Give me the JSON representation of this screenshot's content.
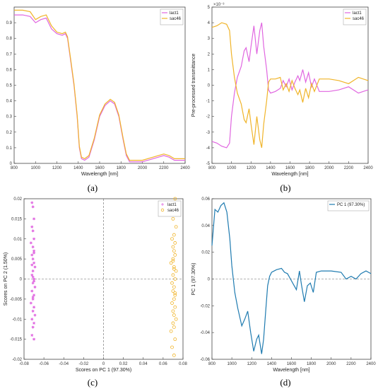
{
  "colors": {
    "pink": "#e066e0",
    "orange": "#f0b429",
    "blue": "#1f7bb0",
    "dash": "#666666"
  },
  "chart_data": [
    {
      "type": "line",
      "panel_label": "(a)",
      "xlabel": "Wavelength [nm]",
      "ylabel": "Transmittance",
      "xlim": [
        800,
        2400
      ],
      "ylim": [
        0,
        1
      ],
      "xticks": [
        800,
        1000,
        1200,
        1400,
        1600,
        1800,
        2000,
        2200,
        2400
      ],
      "yticks": [
        0,
        0.1,
        0.2,
        0.3,
        0.4,
        0.5,
        0.6,
        0.7,
        0.8,
        0.9
      ],
      "legend_pos": "top-right",
      "series": [
        {
          "name": "lact1",
          "color": "pink",
          "x": [
            800,
            880,
            950,
            1000,
            1050,
            1100,
            1150,
            1200,
            1250,
            1280,
            1300,
            1330,
            1360,
            1390,
            1410,
            1430,
            1460,
            1500,
            1550,
            1600,
            1650,
            1700,
            1740,
            1780,
            1820,
            1850,
            1880,
            1900,
            1950,
            2000,
            2100,
            2150,
            2200,
            2250,
            2300,
            2350,
            2400
          ],
          "y": [
            0.95,
            0.95,
            0.94,
            0.9,
            0.92,
            0.93,
            0.86,
            0.83,
            0.82,
            0.83,
            0.8,
            0.65,
            0.5,
            0.3,
            0.1,
            0.03,
            0.02,
            0.04,
            0.15,
            0.3,
            0.37,
            0.4,
            0.38,
            0.3,
            0.15,
            0.05,
            0.01,
            0.01,
            0.01,
            0.01,
            0.03,
            0.04,
            0.05,
            0.04,
            0.02,
            0.02,
            0.02
          ]
        },
        {
          "name": "sac46",
          "color": "orange",
          "x": [
            800,
            880,
            950,
            1000,
            1050,
            1100,
            1150,
            1200,
            1250,
            1280,
            1300,
            1330,
            1360,
            1390,
            1410,
            1430,
            1460,
            1500,
            1550,
            1600,
            1650,
            1700,
            1740,
            1780,
            1820,
            1850,
            1880,
            1900,
            1950,
            2000,
            2100,
            2150,
            2200,
            2250,
            2300,
            2350,
            2400
          ],
          "y": [
            0.98,
            0.98,
            0.97,
            0.92,
            0.94,
            0.95,
            0.88,
            0.84,
            0.83,
            0.84,
            0.81,
            0.66,
            0.51,
            0.31,
            0.11,
            0.04,
            0.03,
            0.05,
            0.16,
            0.31,
            0.38,
            0.41,
            0.39,
            0.31,
            0.16,
            0.06,
            0.02,
            0.02,
            0.02,
            0.02,
            0.04,
            0.05,
            0.06,
            0.05,
            0.03,
            0.03,
            0.03
          ]
        }
      ]
    },
    {
      "type": "line",
      "panel_label": "(b)",
      "xlabel": "Wavelength [nm]",
      "ylabel": "Pre-processed transmittance",
      "exponent_label": "×10⁻³",
      "xlim": [
        800,
        2400
      ],
      "ylim": [
        -5,
        5
      ],
      "xticks": [
        800,
        1000,
        1200,
        1400,
        1600,
        1800,
        2000,
        2200,
        2400
      ],
      "yticks": [
        -5,
        -4,
        -3,
        -2,
        -1,
        0,
        1,
        2,
        3,
        4,
        5
      ],
      "legend_pos": "top-right",
      "series": [
        {
          "name": "lact1",
          "color": "pink",
          "x": [
            800,
            850,
            900,
            950,
            980,
            1000,
            1030,
            1060,
            1100,
            1130,
            1150,
            1180,
            1200,
            1230,
            1260,
            1290,
            1310,
            1330,
            1360,
            1380,
            1400,
            1450,
            1500,
            1530,
            1560,
            1590,
            1620,
            1650,
            1680,
            1700,
            1730,
            1760,
            1790,
            1820,
            1850,
            1900,
            2000,
            2100,
            2200,
            2250,
            2300,
            2350,
            2400
          ],
          "y": [
            -3.6,
            -3.7,
            -3.9,
            -4.0,
            -3.7,
            -2.0,
            -0.5,
            0.5,
            1.2,
            2.2,
            2.4,
            1.5,
            2.5,
            3.8,
            2.0,
            3.5,
            4.0,
            2.5,
            1.0,
            -0.3,
            -0.5,
            -0.4,
            -0.2,
            0.3,
            -0.1,
            0.4,
            -0.3,
            0.2,
            0.6,
            0.3,
            1.0,
            0.2,
            0.8,
            -0.1,
            0.4,
            -0.4,
            -0.4,
            -0.3,
            -0.1,
            -0.3,
            -0.5,
            -0.4,
            -0.3
          ]
        },
        {
          "name": "sac46",
          "color": "orange",
          "x": [
            800,
            850,
            900,
            950,
            980,
            1000,
            1030,
            1060,
            1100,
            1130,
            1150,
            1180,
            1200,
            1230,
            1260,
            1290,
            1310,
            1330,
            1360,
            1380,
            1400,
            1450,
            1500,
            1530,
            1560,
            1590,
            1620,
            1650,
            1680,
            1700,
            1730,
            1760,
            1790,
            1820,
            1850,
            1900,
            2000,
            2100,
            2200,
            2250,
            2300,
            2350,
            2400
          ],
          "y": [
            3.7,
            3.8,
            4.0,
            3.9,
            3.5,
            2.0,
            0.5,
            -0.5,
            -1.2,
            -2.2,
            -2.4,
            -1.5,
            -2.5,
            -3.8,
            -2.0,
            -3.5,
            -4.0,
            -2.5,
            -1.0,
            0.2,
            0.4,
            0.4,
            0.5,
            -0.3,
            0.1,
            -0.4,
            0.3,
            -0.2,
            -0.6,
            -0.3,
            -1.1,
            -0.2,
            -0.8,
            0.1,
            -0.4,
            0.4,
            0.4,
            0.3,
            0.1,
            0.3,
            0.5,
            0.4,
            0.3
          ]
        }
      ]
    },
    {
      "type": "scatter",
      "panel_label": "(c)",
      "xlabel": "Scores on PC 1 (97.30%)",
      "ylabel": "Scores on PC 2 (1.50%)",
      "xlim": [
        -0.08,
        0.08
      ],
      "ylim": [
        -0.02,
        0.02
      ],
      "xticks": [
        -0.08,
        -0.06,
        -0.04,
        -0.02,
        0,
        0.02,
        0.04,
        0.06,
        0.08
      ],
      "yticks": [
        -0.02,
        -0.015,
        -0.01,
        -0.005,
        0,
        0.005,
        0.01,
        0.015,
        0.02
      ],
      "legend_pos": "top-right",
      "series": [
        {
          "name": "lact1",
          "color": "pink",
          "marker": "star",
          "x": [
            -0.072,
            -0.071,
            -0.07,
            -0.072,
            -0.071,
            -0.07,
            -0.073,
            -0.071,
            -0.07,
            -0.072,
            -0.071,
            -0.07,
            -0.069,
            -0.071,
            -0.072,
            -0.07,
            -0.071,
            -0.069,
            -0.072,
            -0.07,
            -0.071,
            -0.073,
            -0.07,
            -0.071,
            -0.069,
            -0.072,
            -0.07,
            -0.071,
            -0.072,
            -0.07,
            -0.071,
            -0.07,
            -0.072,
            -0.071,
            -0.07
          ],
          "y": [
            0.019,
            0.018,
            0.015,
            0.013,
            0.012,
            0.01,
            0.009,
            0.008,
            0.007,
            0.006,
            0.005,
            0.004,
            0.003,
            0.002,
            0.001,
            0.0,
            -0.001,
            -0.002,
            -0.003,
            -0.004,
            -0.005,
            -0.006,
            -0.007,
            -0.008,
            -0.009,
            -0.01,
            -0.011,
            -0.012,
            -0.014,
            -0.015,
            0.0005,
            -0.0005,
            0.0035,
            -0.0045,
            0.0065
          ]
        },
        {
          "name": "sac46",
          "color": "orange",
          "marker": "circle",
          "x": [
            0.072,
            0.071,
            0.07,
            0.073,
            0.071,
            0.069,
            0.072,
            0.07,
            0.071,
            0.072,
            0.07,
            0.068,
            0.071,
            0.073,
            0.07,
            0.072,
            0.069,
            0.071,
            0.07,
            0.072,
            0.071,
            0.069,
            0.072,
            0.07,
            0.071,
            0.073,
            0.07,
            0.071,
            0.068,
            0.072,
            0.069,
            0.071,
            0.07,
            0.072,
            0.071
          ],
          "y": [
            0.02,
            0.017,
            0.015,
            0.013,
            0.011,
            0.01,
            0.009,
            0.008,
            0.007,
            0.006,
            0.005,
            0.004,
            0.003,
            0.002,
            0.001,
            0.0,
            -0.001,
            -0.002,
            -0.003,
            -0.004,
            -0.005,
            -0.006,
            -0.007,
            -0.008,
            -0.009,
            -0.01,
            -0.011,
            -0.012,
            -0.013,
            -0.015,
            -0.017,
            -0.019,
            0.0045,
            -0.0035,
            0.0025
          ]
        }
      ]
    },
    {
      "type": "line",
      "panel_label": "(d)",
      "xlabel": "Wavelength [nm]",
      "ylabel": "PC 1 (97.30%)",
      "xlim": [
        800,
        2400
      ],
      "ylim": [
        -0.06,
        0.06
      ],
      "xticks": [
        800,
        1000,
        1200,
        1400,
        1600,
        1800,
        2000,
        2200,
        2400
      ],
      "yticks": [
        -0.06,
        -0.04,
        -0.02,
        0,
        0.02,
        0.04,
        0.06
      ],
      "legend_pos": "top-right",
      "series": [
        {
          "name": "PC 1 (97.30%)",
          "color": "blue",
          "x": [
            800,
            830,
            860,
            890,
            920,
            950,
            980,
            1000,
            1030,
            1060,
            1100,
            1130,
            1160,
            1190,
            1220,
            1250,
            1270,
            1300,
            1320,
            1340,
            1360,
            1380,
            1400,
            1450,
            1500,
            1530,
            1560,
            1590,
            1620,
            1650,
            1680,
            1700,
            1730,
            1760,
            1790,
            1820,
            1850,
            1900,
            2000,
            2100,
            2150,
            2200,
            2250,
            2300,
            2350,
            2400
          ],
          "y": [
            0.025,
            0.052,
            0.05,
            0.055,
            0.057,
            0.05,
            0.03,
            0.01,
            -0.01,
            -0.022,
            -0.035,
            -0.03,
            -0.024,
            -0.04,
            -0.054,
            -0.045,
            -0.042,
            -0.056,
            -0.045,
            -0.025,
            -0.005,
            0.002,
            0.005,
            0.007,
            0.008,
            0.005,
            0.004,
            0.0,
            -0.004,
            -0.008,
            0.006,
            -0.004,
            -0.017,
            -0.005,
            -0.003,
            -0.01,
            0.005,
            0.006,
            0.006,
            0.005,
            0.0,
            0.002,
            0.0,
            0.004,
            0.006,
            0.004
          ]
        }
      ]
    }
  ]
}
